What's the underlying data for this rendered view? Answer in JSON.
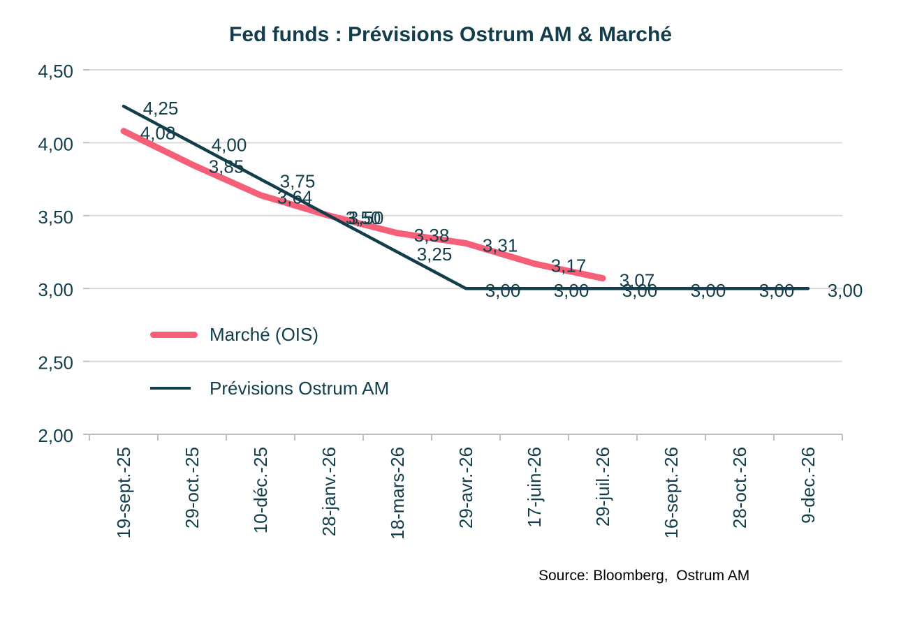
{
  "title": "Fed funds : Prévisions Ostrum AM & Marché",
  "source": "Source: Bloomberg,  Ostrum AM",
  "colors": {
    "dark_teal": "#123E4C",
    "pink": "#F65F78",
    "gridline": "#D9D9D9",
    "axis": "#BFBFBF",
    "source_text": "#000000",
    "background": "#FFFFFF"
  },
  "legend": {
    "items": [
      {
        "label": "Marché (OIS)",
        "series": "marche"
      },
      {
        "label": "Prévisions Ostrum AM",
        "series": "ostrum"
      }
    ]
  },
  "chart_data": {
    "type": "line",
    "title": "Fed funds : Prévisions Ostrum AM & Marché",
    "categories": [
      "19-sept.-25",
      "29-oct.-25",
      "10-déc.-25",
      "28-janv.-26",
      "18-mars-26",
      "29-avr.-26",
      "17-juin-26",
      "29-juil.-26",
      "16-sept.-26",
      "28-oct.-26",
      "9-dec.-26"
    ],
    "series": [
      {
        "name": "Marché (OIS)",
        "color": "#F65F78",
        "stroke_width": 9,
        "values": [
          4.08,
          3.85,
          3.64,
          3.5,
          3.38,
          3.31,
          3.17,
          3.07
        ],
        "labels": [
          "4,08",
          "3,85",
          "3,64",
          "3,50",
          "3,38",
          "3,31",
          "3,17",
          "3,07"
        ]
      },
      {
        "name": "Prévisions Ostrum AM",
        "color": "#123E4C",
        "stroke_width": 4.5,
        "values": [
          4.25,
          4.0,
          3.75,
          3.5,
          3.25,
          3.0,
          3.0,
          3.0,
          3.0,
          3.0,
          3.0
        ],
        "labels": [
          "4,25",
          "4,00",
          "3,75",
          "3,50",
          "3,25",
          "3,00",
          "3,00",
          "3,00",
          "3,00",
          "3,00",
          "3,00"
        ]
      }
    ],
    "y_axis": {
      "min": 2.0,
      "max": 4.5,
      "step": 0.5,
      "ticks": [
        4.5,
        4.0,
        3.5,
        3.0,
        2.5,
        2.0
      ],
      "tick_labels": [
        "4,50",
        "4,00",
        "3,50",
        "3,00",
        "2,50",
        "2,00"
      ]
    },
    "grid": true,
    "legend_position": "inside-left",
    "data_labels": true,
    "label_format": "french-comma"
  }
}
